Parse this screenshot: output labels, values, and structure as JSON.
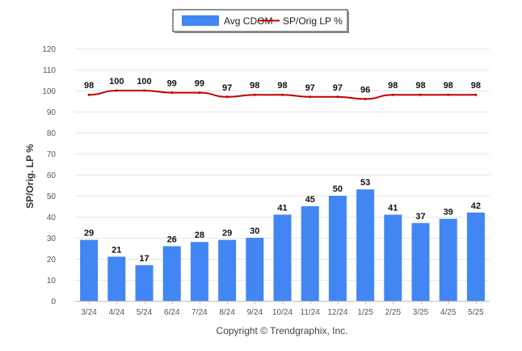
{
  "chart_data": {
    "type": "bar",
    "categories": [
      "3/24",
      "4/24",
      "5/24",
      "6/24",
      "7/24",
      "8/24",
      "9/24",
      "10/24",
      "11/24",
      "12/24",
      "1/25",
      "2/25",
      "3/25",
      "4/25",
      "5/25"
    ],
    "series": [
      {
        "name": "Avg CDOM",
        "type": "bar",
        "color": "#4286f4",
        "values": [
          29,
          21,
          17,
          26,
          28,
          29,
          30,
          41,
          45,
          50,
          53,
          41,
          37,
          39,
          42
        ]
      },
      {
        "name": "SP/Orig LP %",
        "type": "line",
        "color": "#c00000",
        "values": [
          98,
          100,
          100,
          99,
          99,
          97,
          98,
          98,
          97,
          97,
          96,
          98,
          98,
          98,
          98
        ]
      }
    ],
    "ylabel": "SP/Orig. LP %",
    "ylim": [
      0,
      120
    ],
    "yticks": [
      0,
      10,
      20,
      30,
      40,
      50,
      60,
      70,
      80,
      90,
      100,
      110,
      120
    ],
    "grid": true,
    "legend_position": "top-center"
  },
  "credit": "Copyright © Trendgraphix, Inc."
}
